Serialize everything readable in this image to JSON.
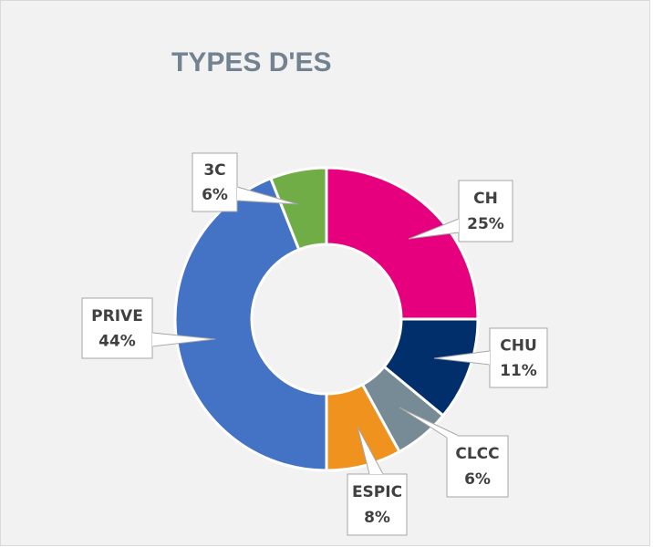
{
  "chart_data": {
    "type": "donut",
    "title": "TYPES D'ES",
    "categories": [
      "CH",
      "CHU",
      "CLCC",
      "ESPIC",
      "PRIVE",
      "3C"
    ],
    "values": [
      25,
      11,
      6,
      8,
      44,
      6
    ],
    "value_labels": [
      "25%",
      "11%",
      "6%",
      "8%",
      "44%",
      "6%"
    ],
    "colors": [
      "#e6007e",
      "#002f6c",
      "#778b96",
      "#f0921e",
      "#4472c4",
      "#70ad47"
    ]
  }
}
